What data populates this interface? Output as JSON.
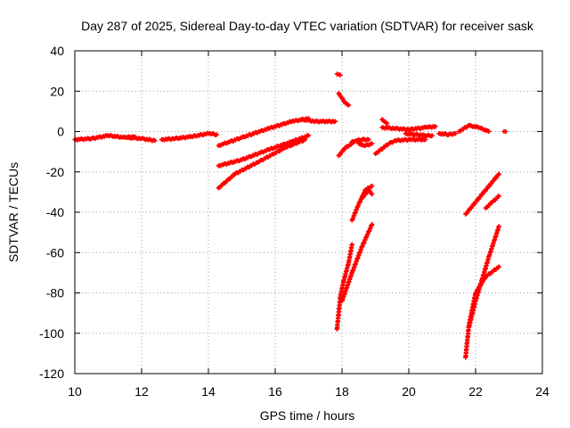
{
  "chart_data": {
    "type": "scatter",
    "title": "Day 287 of 2025, Sidereal Day-to-day VTEC variation (SDTVAR) for receiver sask",
    "xlabel": "GPS time / hours",
    "ylabel": "SDTVAR / TECUs",
    "xlim": [
      10,
      24
    ],
    "ylim": [
      -120,
      40
    ],
    "xticks": [
      10,
      12,
      14,
      16,
      18,
      20,
      22,
      24
    ],
    "yticks": [
      -120,
      -100,
      -80,
      -60,
      -40,
      -20,
      0,
      20,
      40
    ],
    "grid": true,
    "marker": "+",
    "color": "#ff0000",
    "series": [
      {
        "name": "seg1",
        "x": [
          10.0,
          10.5,
          11.0,
          11.5,
          11.8
        ],
        "y": [
          -4,
          -3.5,
          -2,
          -3,
          -2.5
        ]
      },
      {
        "name": "seg2",
        "x": [
          11.6,
          12.0,
          12.4
        ],
        "y": [
          -3,
          -3.5,
          -4.5
        ]
      },
      {
        "name": "seg3",
        "x": [
          12.6,
          13.0,
          13.5,
          14.0,
          14.25
        ],
        "y": [
          -4,
          -3.5,
          -2.5,
          -1,
          -1.5
        ]
      },
      {
        "name": "seg4",
        "x": [
          14.3,
          15.0,
          15.8,
          16.5,
          17.0
        ],
        "y": [
          -7,
          -3,
          1.5,
          5,
          6.5
        ]
      },
      {
        "name": "seg5",
        "x": [
          16.8,
          17.2,
          17.8
        ],
        "y": [
          6,
          5,
          5
        ]
      },
      {
        "name": "seg6",
        "x": [
          14.3,
          15.0,
          15.8,
          16.5,
          17.0
        ],
        "y": [
          -17,
          -14,
          -9,
          -5,
          -2
        ]
      },
      {
        "name": "seg7",
        "x": [
          14.3,
          14.8,
          15.5,
          16.3,
          16.9
        ],
        "y": [
          -28,
          -21,
          -15,
          -8,
          -4
        ]
      },
      {
        "name": "seg8",
        "x": [
          17.85,
          17.95
        ],
        "y": [
          28.5,
          28
        ]
      },
      {
        "name": "seg9",
        "x": [
          17.9,
          18.1,
          18.2
        ],
        "y": [
          19,
          14,
          13
        ]
      },
      {
        "name": "seg10",
        "x": [
          17.9,
          18.1,
          18.3
        ],
        "y": [
          -12,
          -8,
          -6
        ]
      },
      {
        "name": "seg11",
        "x": [
          18.3,
          18.6,
          18.8
        ],
        "y": [
          -5,
          -4,
          -4
        ]
      },
      {
        "name": "seg12",
        "x": [
          18.5,
          18.7,
          18.9
        ],
        "y": [
          -6,
          -7,
          -6
        ]
      },
      {
        "name": "seg13",
        "x": [
          17.85,
          17.95,
          18.05,
          18.2,
          18.3
        ],
        "y": [
          -98,
          -82,
          -74,
          -65,
          -56
        ]
      },
      {
        "name": "seg14",
        "x": [
          18.0,
          18.3,
          18.6,
          18.9
        ],
        "y": [
          -84,
          -70,
          -57,
          -46
        ]
      },
      {
        "name": "seg15",
        "x": [
          18.3,
          18.5,
          18.7,
          18.9
        ],
        "y": [
          -44,
          -36,
          -29,
          -27
        ]
      },
      {
        "name": "seg16",
        "x": [
          18.6,
          18.8,
          18.9
        ],
        "y": [
          -33,
          -29,
          -31
        ]
      },
      {
        "name": "seg17",
        "x": [
          19.2,
          19.35
        ],
        "y": [
          6,
          4
        ]
      },
      {
        "name": "seg18",
        "x": [
          19.2,
          19.6,
          20.0,
          20.5,
          20.8
        ],
        "y": [
          2,
          1.5,
          1,
          2,
          2.5
        ]
      },
      {
        "name": "seg19",
        "x": [
          19.0,
          19.4,
          19.6,
          20.0,
          20.5
        ],
        "y": [
          -11,
          -6,
          -4.5,
          -4,
          -4
        ]
      },
      {
        "name": "seg20",
        "x": [
          19.9,
          20.2,
          20.5,
          20.7
        ],
        "y": [
          -1,
          -1.5,
          -2,
          -2
        ]
      },
      {
        "name": "seg21",
        "x": [
          20.9,
          21.2,
          21.4
        ],
        "y": [
          -1,
          -1.5,
          -1
        ]
      },
      {
        "name": "seg22",
        "x": [
          21.5,
          21.8,
          22.1,
          22.4
        ],
        "y": [
          0,
          3,
          2,
          0
        ]
      },
      {
        "name": "seg23",
        "x": [
          22.85,
          22.9
        ],
        "y": [
          0,
          0
        ]
      },
      {
        "name": "seg24",
        "x": [
          21.7,
          21.9,
          22.2,
          22.5,
          22.7
        ],
        "y": [
          -41,
          -37,
          -31,
          -25,
          -21
        ]
      },
      {
        "name": "seg25",
        "x": [
          22.3,
          22.5,
          22.7
        ],
        "y": [
          -38,
          -35,
          -32
        ]
      },
      {
        "name": "seg26",
        "x": [
          21.7,
          21.8,
          22.0,
          22.3,
          22.7
        ],
        "y": [
          -112,
          -96,
          -80,
          -72,
          -67
        ]
      },
      {
        "name": "seg27",
        "x": [
          21.8,
          22.0,
          22.2,
          22.4,
          22.6,
          22.7
        ],
        "y": [
          -97,
          -84,
          -73,
          -62,
          -52,
          -47
        ]
      }
    ]
  }
}
